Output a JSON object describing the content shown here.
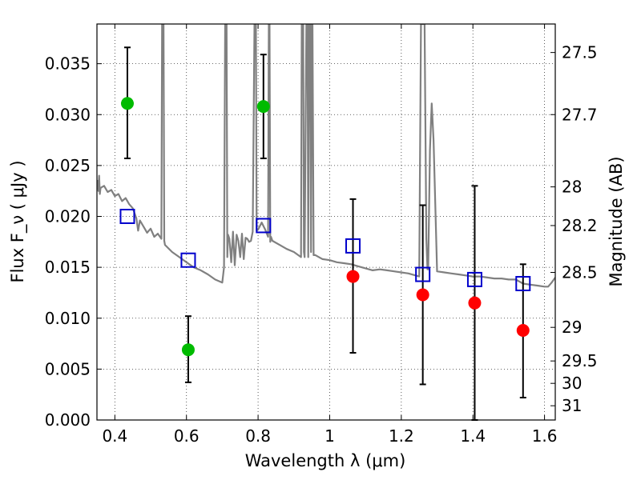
{
  "chart_data": {
    "type": "scatter",
    "xlabel": "Wavelength  λ (μm)",
    "ylabel": "Flux  F_ν  ( μJy )",
    "ylabel_right": "Magnitude (AB)",
    "xlim": [
      0.35,
      1.63
    ],
    "ylim": [
      0.0,
      0.0389
    ],
    "grid": true,
    "x_ticks": [
      0.4,
      0.6,
      0.8,
      1.0,
      1.2,
      1.4,
      1.6
    ],
    "x_tick_labels": [
      "0.4",
      "0.6",
      "0.8",
      "1",
      "1.2",
      "1.4",
      "1.6"
    ],
    "y_ticks": [
      0.0,
      0.005,
      0.01,
      0.015,
      0.02,
      0.025,
      0.03,
      0.035
    ],
    "y_tick_labels": [
      "0.000",
      "0.005",
      "0.010",
      "0.015",
      "0.020",
      "0.025",
      "0.030",
      "0.035"
    ],
    "right_ticks": [
      {
        "label": "27.5",
        "flux": 0.0361
      },
      {
        "label": "27.7",
        "flux": 0.03
      },
      {
        "label": "28",
        "flux": 0.0229
      },
      {
        "label": "28.2",
        "flux": 0.0191
      },
      {
        "label": "28.5",
        "flux": 0.0145
      },
      {
        "label": "29",
        "flux": 0.0091
      },
      {
        "label": "29.5",
        "flux": 0.0058
      },
      {
        "label": "30",
        "flux": 0.0036
      },
      {
        "label": "31",
        "flux": 0.0014
      }
    ],
    "series": [
      {
        "marker": "circle",
        "color": "#00bb00",
        "points": [
          {
            "x": 0.435,
            "y": 0.0311,
            "err_low": 0.0257,
            "err_high": 0.0366
          },
          {
            "x": 0.605,
            "y": 0.0069,
            "err_low": 0.0037,
            "err_high": 0.0102
          },
          {
            "x": 0.815,
            "y": 0.0308,
            "err_low": 0.0257,
            "err_high": 0.0359
          }
        ]
      },
      {
        "marker": "circle",
        "color": "#ff0000",
        "points": [
          {
            "x": 1.065,
            "y": 0.0141,
            "err_low": 0.0066,
            "err_high": 0.0217
          },
          {
            "x": 1.26,
            "y": 0.0123,
            "err_low": 0.0035,
            "err_high": 0.0211
          },
          {
            "x": 1.405,
            "y": 0.0115,
            "err_low": 0.0,
            "err_high": 0.023
          },
          {
            "x": 1.54,
            "y": 0.0088,
            "err_low": 0.0022,
            "err_high": 0.0153
          }
        ]
      },
      {
        "marker": "open-square",
        "color": "#0000cc",
        "points": [
          {
            "x": 0.435,
            "y": 0.02
          },
          {
            "x": 0.605,
            "y": 0.0157
          },
          {
            "x": 0.815,
            "y": 0.0191
          },
          {
            "x": 1.065,
            "y": 0.0171
          },
          {
            "x": 1.26,
            "y": 0.0143
          },
          {
            "x": 1.405,
            "y": 0.0138
          },
          {
            "x": 1.54,
            "y": 0.0134
          }
        ]
      },
      {
        "marker": "line",
        "color": "#808080",
        "x": [
          0.35,
          0.352,
          0.354,
          0.356,
          0.358,
          0.36,
          0.37,
          0.38,
          0.39,
          0.4,
          0.41,
          0.42,
          0.43,
          0.44,
          0.45,
          0.46,
          0.465,
          0.47,
          0.48,
          0.49,
          0.5,
          0.51,
          0.52,
          0.53,
          0.532,
          0.534,
          0.536,
          0.538,
          0.54,
          0.56,
          0.58,
          0.6,
          0.62,
          0.64,
          0.66,
          0.68,
          0.7,
          0.705,
          0.708,
          0.71,
          0.712,
          0.714,
          0.716,
          0.72,
          0.725,
          0.73,
          0.735,
          0.74,
          0.745,
          0.75,
          0.755,
          0.76,
          0.765,
          0.77,
          0.775,
          0.78,
          0.785,
          0.79,
          0.792,
          0.794,
          0.796,
          0.8,
          0.81,
          0.82,
          0.828,
          0.83,
          0.832,
          0.834,
          0.836,
          0.84,
          0.86,
          0.88,
          0.9,
          0.92,
          0.922,
          0.924,
          0.926,
          0.928,
          0.93,
          0.935,
          0.938,
          0.94,
          0.942,
          0.945,
          0.948,
          0.95,
          0.952,
          0.955,
          0.96,
          0.98,
          1.0,
          1.02,
          1.04,
          1.06,
          1.08,
          1.1,
          1.12,
          1.14,
          1.16,
          1.18,
          1.2,
          1.22,
          1.24,
          1.25,
          1.255,
          1.257,
          1.26,
          1.265,
          1.27,
          1.273,
          1.275,
          1.28,
          1.285,
          1.29,
          1.3,
          1.32,
          1.34,
          1.36,
          1.38,
          1.4,
          1.42,
          1.44,
          1.46,
          1.48,
          1.5,
          1.52,
          1.54,
          1.56,
          1.58,
          1.6,
          1.61,
          1.62,
          1.63
        ],
        "y": [
          0.0228,
          0.0235,
          0.0225,
          0.024,
          0.0222,
          0.0228,
          0.023,
          0.0224,
          0.0226,
          0.022,
          0.0222,
          0.0215,
          0.0218,
          0.0212,
          0.0208,
          0.0198,
          0.0186,
          0.0196,
          0.019,
          0.0184,
          0.0188,
          0.018,
          0.0183,
          0.0178,
          0.0389,
          0.0389,
          0.0389,
          0.0176,
          0.0172,
          0.0165,
          0.016,
          0.0155,
          0.015,
          0.0147,
          0.0143,
          0.0138,
          0.0135,
          0.015,
          0.0389,
          0.0389,
          0.0389,
          0.016,
          0.0182,
          0.0178,
          0.0155,
          0.0185,
          0.0152,
          0.0182,
          0.0176,
          0.016,
          0.0183,
          0.0158,
          0.0179,
          0.0178,
          0.0175,
          0.0176,
          0.0185,
          0.0389,
          0.0389,
          0.0389,
          0.0186,
          0.0187,
          0.0194,
          0.0187,
          0.018,
          0.0389,
          0.0389,
          0.0175,
          0.018,
          0.0176,
          0.0172,
          0.0168,
          0.0165,
          0.016,
          0.0389,
          0.0389,
          0.0389,
          0.0165,
          0.016,
          0.0389,
          0.0389,
          0.016,
          0.0389,
          0.0389,
          0.0165,
          0.0389,
          0.0389,
          0.0162,
          0.0162,
          0.0158,
          0.0157,
          0.0155,
          0.0154,
          0.0153,
          0.0151,
          0.0149,
          0.0147,
          0.0148,
          0.0147,
          0.0146,
          0.0145,
          0.0144,
          0.0142,
          0.0141,
          0.0389,
          0.0389,
          0.0389,
          0.0389,
          0.0178,
          0.0148,
          0.0148,
          0.0265,
          0.0311,
          0.0275,
          0.0146,
          0.0145,
          0.0144,
          0.0143,
          0.0142,
          0.0141,
          0.0141,
          0.014,
          0.0139,
          0.0139,
          0.0138,
          0.0138,
          0.0134,
          0.0133,
          0.0132,
          0.0131,
          0.0131,
          0.0135,
          0.014
        ]
      }
    ]
  }
}
